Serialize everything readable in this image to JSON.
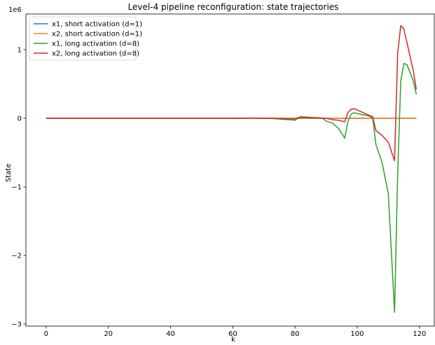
{
  "chart_data": {
    "type": "line",
    "title": "Level-4 pipeline reconfiguration: state trajectories",
    "xlabel": "k",
    "ylabel": "State",
    "y_offset_label": "1e6",
    "xlim": [
      -6.5,
      125
    ],
    "ylim": [
      -3.03,
      1.52
    ],
    "x_ticks": [
      0,
      20,
      40,
      60,
      80,
      100,
      120
    ],
    "x_tick_labels": [
      "0",
      "20",
      "40",
      "60",
      "80",
      "100",
      "120"
    ],
    "y_ticks": [
      -3,
      -2,
      -1,
      0,
      1
    ],
    "y_tick_labels": [
      "−3",
      "−2",
      "−1",
      "0",
      "1"
    ],
    "grid": false,
    "legend_position": "top-left",
    "units_note": "y values in units of 1e6",
    "series": [
      {
        "name": "x1, short activation (d=1)",
        "color": "#1f77b4",
        "x": [
          0,
          20,
          40,
          60,
          80,
          100,
          119
        ],
        "y": [
          0,
          0,
          0,
          0,
          0,
          0,
          0
        ]
      },
      {
        "name": "x2, short activation (d=1)",
        "color": "#ff7f0e",
        "x": [
          0,
          20,
          40,
          60,
          80,
          100,
          119
        ],
        "y": [
          0,
          0,
          0,
          0,
          0,
          0,
          0
        ]
      },
      {
        "name": "x1, long activation (d=8)",
        "color": "#2ca02c",
        "x": [
          0,
          60,
          64,
          65,
          72,
          74,
          76,
          78,
          80,
          81,
          82,
          84,
          86,
          88,
          89,
          90,
          92,
          94,
          96,
          97,
          98,
          99,
          100,
          102,
          104,
          105,
          106,
          108,
          110,
          112,
          113,
          114,
          115,
          116,
          118,
          119
        ],
        "y": [
          0,
          0,
          -0.003,
          0.002,
          -0.003,
          -0.008,
          -0.015,
          -0.02,
          -0.03,
          0.0,
          0.01,
          0.005,
          0.003,
          0.0,
          -0.003,
          -0.04,
          -0.07,
          -0.15,
          -0.29,
          -0.05,
          0.06,
          0.08,
          0.07,
          0.05,
          0.03,
          0.0,
          -0.38,
          -0.65,
          -1.1,
          -2.83,
          -0.8,
          0.55,
          0.8,
          0.78,
          0.55,
          0.35
        ]
      },
      {
        "name": "x2, long activation (d=8)",
        "color": "#d62728",
        "x": [
          0,
          64,
          65,
          72,
          74,
          76,
          78,
          80,
          81,
          82,
          84,
          86,
          88,
          90,
          92,
          94,
          96,
          97,
          98,
          99,
          100,
          102,
          104,
          105,
          106,
          108,
          110,
          112,
          113,
          114,
          115,
          116,
          118,
          119
        ],
        "y": [
          0,
          0,
          0.004,
          0.0,
          -0.003,
          -0.005,
          -0.01,
          -0.01,
          0.01,
          0.02,
          0.015,
          0.01,
          0.005,
          0.0,
          -0.02,
          -0.03,
          -0.05,
          0.08,
          0.13,
          0.14,
          0.12,
          0.08,
          0.04,
          0.02,
          -0.18,
          -0.25,
          -0.35,
          -0.62,
          0.95,
          1.35,
          1.3,
          1.1,
          0.7,
          0.42
        ]
      }
    ]
  }
}
